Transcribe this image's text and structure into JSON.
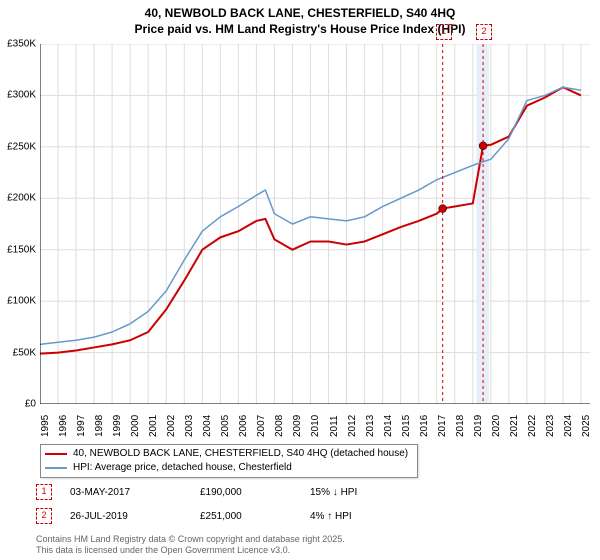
{
  "title_line1": "40, NEWBOLD BACK LANE, CHESTERFIELD, S40 4HQ",
  "title_line2": "Price paid vs. HM Land Registry's House Price Index (HPI)",
  "chart": {
    "type": "line",
    "background_color": "#ffffff",
    "grid_color": "#dddddd",
    "x_label_fontsize": 10,
    "y_label_fontsize": 10,
    "xlim": [
      1995,
      2025.5
    ],
    "ylim": [
      0,
      350000
    ],
    "ytick_step": 50000,
    "ytick_labels": [
      "£0",
      "£50K",
      "£100K",
      "£150K",
      "£200K",
      "£250K",
      "£300K",
      "£350K"
    ],
    "xtick_labels": [
      "1995",
      "1996",
      "1997",
      "1998",
      "1999",
      "2000",
      "2001",
      "2002",
      "2003",
      "2004",
      "2005",
      "2006",
      "2007",
      "2008",
      "2009",
      "2010",
      "2011",
      "2012",
      "2013",
      "2014",
      "2015",
      "2016",
      "2017",
      "2018",
      "2019",
      "2020",
      "2021",
      "2022",
      "2023",
      "2024",
      "2025"
    ],
    "series": [
      {
        "name": "price_paid",
        "label": "40, NEWBOLD BACK LANE, CHESTERFIELD, S40 4HQ (detached house)",
        "color": "#cc0000",
        "line_width": 2,
        "points_x": [
          1995,
          1996,
          1997,
          1998,
          1999,
          2000,
          2001,
          2002,
          2003,
          2004,
          2005,
          2006,
          2007,
          2007.5,
          2008,
          2009,
          2010,
          2011,
          2012,
          2013,
          2014,
          2015,
          2016,
          2017,
          2017.33,
          2018,
          2019,
          2019.57,
          2020,
          2021,
          2022,
          2023,
          2024,
          2025
        ],
        "points_y": [
          49000,
          50000,
          52000,
          55000,
          58000,
          62000,
          70000,
          92000,
          120000,
          150000,
          162000,
          168000,
          178000,
          180000,
          160000,
          150000,
          158000,
          158000,
          155000,
          158000,
          165000,
          172000,
          178000,
          185000,
          190000,
          192000,
          195000,
          251000,
          252000,
          260000,
          290000,
          298000,
          308000,
          300000
        ]
      },
      {
        "name": "hpi",
        "label": "HPI: Average price, detached house, Chesterfield",
        "color": "#6699cc",
        "line_width": 1.5,
        "points_x": [
          1995,
          1996,
          1997,
          1998,
          1999,
          2000,
          2001,
          2002,
          2003,
          2004,
          2005,
          2006,
          2007,
          2007.5,
          2008,
          2009,
          2010,
          2011,
          2012,
          2013,
          2014,
          2015,
          2016,
          2017,
          2018,
          2019,
          2020,
          2021,
          2022,
          2023,
          2024,
          2025
        ],
        "points_y": [
          58000,
          60000,
          62000,
          65000,
          70000,
          78000,
          90000,
          110000,
          140000,
          168000,
          182000,
          192000,
          203000,
          208000,
          185000,
          175000,
          182000,
          180000,
          178000,
          182000,
          192000,
          200000,
          208000,
          218000,
          225000,
          232000,
          238000,
          258000,
          295000,
          300000,
          308000,
          305000
        ]
      }
    ],
    "markers": [
      {
        "index": "1",
        "x": 2017.33,
        "y": 190000,
        "band_start": null,
        "band_end": null
      },
      {
        "index": "2",
        "x": 2019.57,
        "y": 251000,
        "band_start": 2019.2,
        "band_end": 2019.9
      }
    ],
    "marker_line_color": "#cc0000",
    "marker_point_color": "#cc0000",
    "band_fill": "#e8eef7"
  },
  "legend": {
    "items": [
      {
        "color": "#cc0000",
        "width": 2,
        "label": "40, NEWBOLD BACK LANE, CHESTERFIELD, S40 4HQ (detached house)"
      },
      {
        "color": "#6699cc",
        "width": 1.5,
        "label": "HPI: Average price, detached house, Chesterfield"
      }
    ]
  },
  "sales": [
    {
      "index": "1",
      "date": "03-MAY-2017",
      "price": "£190,000",
      "delta": "15% ↓ HPI"
    },
    {
      "index": "2",
      "date": "26-JUL-2019",
      "price": "£251,000",
      "delta": "4% ↑ HPI"
    }
  ],
  "footer_line1": "Contains HM Land Registry data © Crown copyright and database right 2025.",
  "footer_line2": "This data is licensed under the Open Government Licence v3.0."
}
